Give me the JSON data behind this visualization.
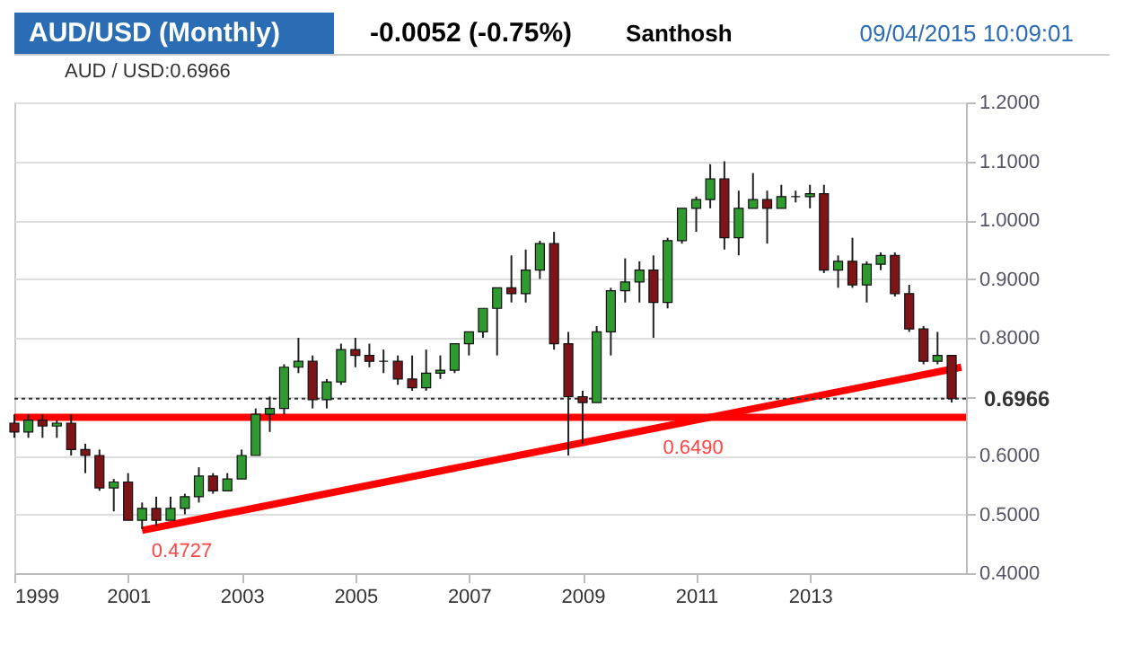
{
  "chart_data": {
    "type": "candlestick",
    "title": "AUD/USD (Monthly)",
    "subtitle": "-0.0052 (-0.75%)",
    "annotations": [
      "Santhosh",
      "09/04/2015 10:09:01",
      "AUD / USD:0.6966",
      {
        "text": "0.4727",
        "x": "2001-06",
        "y": 0.4727
      },
      {
        "text": "0.6490",
        "x": "2010-06",
        "y": 0.649
      }
    ],
    "x": [
      "1999-01",
      "1999-04",
      "1999-07",
      "1999-10",
      "2000-01",
      "2000-04",
      "2000-07",
      "2000-10",
      "2001-01",
      "2001-04",
      "2001-07",
      "2001-10",
      "2002-01",
      "2002-04",
      "2002-07",
      "2002-10",
      "2003-01",
      "2003-04",
      "2003-07",
      "2003-10",
      "2004-01",
      "2004-04",
      "2004-07",
      "2004-10",
      "2005-01",
      "2005-04",
      "2005-07",
      "2005-10",
      "2006-01",
      "2006-04",
      "2006-07",
      "2006-10",
      "2007-01",
      "2007-04",
      "2007-07",
      "2007-10",
      "2008-01",
      "2008-04",
      "2008-07",
      "2008-10",
      "2009-01",
      "2009-04",
      "2009-07",
      "2009-10",
      "2010-01",
      "2010-04",
      "2010-07",
      "2010-10",
      "2011-01",
      "2011-04",
      "2011-07",
      "2011-10",
      "2012-01",
      "2012-04",
      "2012-07",
      "2012-10",
      "2013-01",
      "2013-04",
      "2013-07",
      "2013-10",
      "2014-01",
      "2014-04",
      "2014-07",
      "2014-10",
      "2015-01",
      "2015-04",
      "2015-07"
    ],
    "ohlc": [
      [
        0.655,
        0.67,
        0.63,
        0.64
      ],
      [
        0.64,
        0.67,
        0.63,
        0.66
      ],
      [
        0.66,
        0.67,
        0.63,
        0.65
      ],
      [
        0.65,
        0.66,
        0.63,
        0.655
      ],
      [
        0.655,
        0.67,
        0.6,
        0.61
      ],
      [
        0.61,
        0.62,
        0.57,
        0.6
      ],
      [
        0.6,
        0.61,
        0.54,
        0.545
      ],
      [
        0.545,
        0.56,
        0.505,
        0.555
      ],
      [
        0.555,
        0.57,
        0.49,
        0.49
      ],
      [
        0.49,
        0.52,
        0.475,
        0.51
      ],
      [
        0.51,
        0.53,
        0.48,
        0.49
      ],
      [
        0.49,
        0.53,
        0.49,
        0.51
      ],
      [
        0.51,
        0.535,
        0.5,
        0.53
      ],
      [
        0.53,
        0.58,
        0.52,
        0.565
      ],
      [
        0.565,
        0.57,
        0.535,
        0.54
      ],
      [
        0.54,
        0.57,
        0.54,
        0.56
      ],
      [
        0.56,
        0.61,
        0.56,
        0.6
      ],
      [
        0.6,
        0.68,
        0.6,
        0.67
      ],
      [
        0.67,
        0.7,
        0.64,
        0.68
      ],
      [
        0.68,
        0.755,
        0.67,
        0.75
      ],
      [
        0.75,
        0.8,
        0.74,
        0.76
      ],
      [
        0.76,
        0.77,
        0.68,
        0.695
      ],
      [
        0.695,
        0.73,
        0.68,
        0.725
      ],
      [
        0.725,
        0.79,
        0.72,
        0.78
      ],
      [
        0.78,
        0.8,
        0.75,
        0.77
      ],
      [
        0.77,
        0.79,
        0.75,
        0.76
      ],
      [
        0.76,
        0.78,
        0.74,
        0.76
      ],
      [
        0.76,
        0.77,
        0.72,
        0.73
      ],
      [
        0.73,
        0.77,
        0.71,
        0.715
      ],
      [
        0.715,
        0.78,
        0.71,
        0.74
      ],
      [
        0.74,
        0.77,
        0.73,
        0.745
      ],
      [
        0.745,
        0.79,
        0.74,
        0.79
      ],
      [
        0.79,
        0.81,
        0.77,
        0.81
      ],
      [
        0.81,
        0.85,
        0.8,
        0.85
      ],
      [
        0.85,
        0.885,
        0.77,
        0.885
      ],
      [
        0.885,
        0.94,
        0.86,
        0.875
      ],
      [
        0.875,
        0.95,
        0.86,
        0.915
      ],
      [
        0.915,
        0.965,
        0.9,
        0.96
      ],
      [
        0.96,
        0.98,
        0.78,
        0.79
      ],
      [
        0.79,
        0.81,
        0.6,
        0.7
      ],
      [
        0.7,
        0.71,
        0.62,
        0.69
      ],
      [
        0.69,
        0.82,
        0.69,
        0.81
      ],
      [
        0.81,
        0.885,
        0.77,
        0.88
      ],
      [
        0.88,
        0.935,
        0.86,
        0.895
      ],
      [
        0.895,
        0.93,
        0.86,
        0.915
      ],
      [
        0.915,
        0.94,
        0.8,
        0.86
      ],
      [
        0.86,
        0.97,
        0.85,
        0.965
      ],
      [
        0.965,
        1.02,
        0.96,
        1.02
      ],
      [
        1.02,
        1.04,
        0.98,
        1.035
      ],
      [
        1.035,
        1.095,
        1.02,
        1.07
      ],
      [
        1.07,
        1.1,
        0.95,
        0.97
      ],
      [
        0.97,
        1.05,
        0.94,
        1.02
      ],
      [
        1.02,
        1.08,
        1.02,
        1.035
      ],
      [
        1.035,
        1.05,
        0.96,
        1.02
      ],
      [
        1.02,
        1.06,
        1.02,
        1.04
      ],
      [
        1.04,
        1.05,
        1.03,
        1.04
      ],
      [
        1.04,
        1.06,
        1.02,
        1.045
      ],
      [
        1.045,
        1.06,
        0.91,
        0.915
      ],
      [
        0.915,
        0.94,
        0.885,
        0.93
      ],
      [
        0.93,
        0.97,
        0.885,
        0.89
      ],
      [
        0.89,
        0.93,
        0.86,
        0.925
      ],
      [
        0.925,
        0.945,
        0.915,
        0.94
      ],
      [
        0.94,
        0.945,
        0.87,
        0.875
      ],
      [
        0.875,
        0.89,
        0.81,
        0.815
      ],
      [
        0.815,
        0.82,
        0.755,
        0.76
      ],
      [
        0.76,
        0.81,
        0.755,
        0.77
      ],
      [
        0.77,
        0.77,
        0.69,
        0.6966
      ]
    ],
    "series": [
      {
        "type": "line",
        "color": "#ff0000",
        "x": [
          "2001-04",
          "2015-09"
        ],
        "values": [
          0.4727,
          0.75
        ]
      }
    ],
    "ref_lines": [
      {
        "axis": "y",
        "value": 0.665,
        "color": "#ff0000",
        "line_style": "solid"
      },
      {
        "axis": "y",
        "value": 0.6966,
        "label": "0.6966",
        "color": "#333333",
        "line_style": "dotted"
      }
    ],
    "xlim": [
      "1999-01",
      "2015-10"
    ],
    "xticks": [
      "1999",
      "2001",
      "2003",
      "2005",
      "2007",
      "2009",
      "2011",
      "2013"
    ],
    "ylim": [
      0.4,
      1.2
    ],
    "yticks": [
      {
        "value": 0.4,
        "label": "0.4000"
      },
      {
        "value": 0.5,
        "label": "0.5000"
      },
      {
        "value": 0.6,
        "label": "0.6000"
      },
      {
        "value": 0.7,
        "label": null
      },
      {
        "value": 0.8,
        "label": "0.8000"
      },
      {
        "value": 0.9,
        "label": "0.9000"
      },
      {
        "value": 1.0,
        "label": "1.0000"
      },
      {
        "value": 1.1,
        "label": "1.1000"
      },
      {
        "value": 1.2,
        "label": "1.2000"
      }
    ],
    "grid": "y"
  }
}
